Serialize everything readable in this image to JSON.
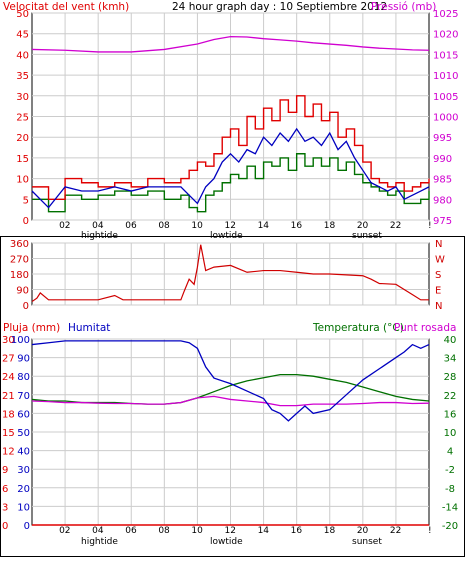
{
  "colors": {
    "wind": "#e00000",
    "gust": "#e00000",
    "avg": "#007000",
    "pressure": "#d000d0",
    "dir": "#d00000",
    "humidity": "#0000c0",
    "temp": "#007000",
    "dew": "#d000d0",
    "rain": "#e00000",
    "grid": "#cccccc",
    "axis": "#000000"
  },
  "x_ticks": [
    "02",
    "04",
    "06",
    "08",
    "10",
    "12",
    "14",
    "16",
    "18",
    "20",
    "22",
    "!"
  ],
  "x_markers": {
    "hightide": "hightide",
    "lowtide": "lowtide",
    "sunset": "sunset"
  },
  "chart_data": [
    {
      "type": "line",
      "title_left": "Velocitat del vent (kmh)",
      "title_center": "24 hour graph day : 10 Septiembre 2012",
      "title_right": "Pressió (mb)",
      "y_left": {
        "ticks": [
          "0",
          "5",
          "10",
          "15",
          "20",
          "25",
          "30",
          "35",
          "40",
          "45",
          "50"
        ],
        "lim": [
          0,
          50
        ]
      },
      "y_right": {
        "ticks": [
          "975",
          "980",
          "985",
          "990",
          "995",
          "1000",
          "1005",
          "1010",
          "1015",
          "1020",
          "1025"
        ],
        "lim": [
          975,
          1025
        ]
      },
      "series": [
        {
          "name": "gust",
          "hours": [
            0,
            1,
            2,
            3,
            4,
            5,
            6,
            7,
            8,
            9,
            9.5,
            10,
            10.5,
            11,
            11.5,
            12,
            12.5,
            13,
            13.5,
            14,
            14.5,
            15,
            15.5,
            16,
            16.5,
            17,
            17.5,
            18,
            18.5,
            19,
            19.5,
            20,
            20.5,
            21,
            21.5,
            22,
            22.5,
            23,
            23.5,
            24
          ],
          "values": [
            8,
            5,
            10,
            9,
            8,
            9,
            8,
            10,
            9,
            10,
            12,
            14,
            13,
            16,
            20,
            22,
            18,
            25,
            22,
            27,
            24,
            29,
            26,
            30,
            25,
            28,
            24,
            26,
            20,
            22,
            18,
            14,
            10,
            9,
            8,
            9,
            7,
            8,
            9,
            10
          ]
        },
        {
          "name": "speed",
          "hours": [
            0,
            1,
            2,
            3,
            4,
            5,
            6,
            7,
            8,
            9,
            9.5,
            10,
            10.5,
            11,
            11.5,
            12,
            12.5,
            13,
            13.5,
            14,
            14.5,
            15,
            15.5,
            16,
            16.5,
            17,
            17.5,
            18,
            18.5,
            19,
            19.5,
            20,
            20.5,
            21,
            21.5,
            22,
            22.5,
            23,
            23.5,
            24
          ],
          "values": [
            7,
            3,
            8,
            7,
            7,
            8,
            7,
            8,
            8,
            8,
            6,
            4,
            8,
            10,
            14,
            16,
            14,
            17,
            16,
            20,
            18,
            21,
            19,
            22,
            19,
            20,
            18,
            21,
            17,
            19,
            15,
            12,
            9,
            8,
            7,
            8,
            5,
            6,
            7,
            8
          ]
        },
        {
          "name": "average",
          "hours": [
            0,
            1,
            2,
            3,
            4,
            5,
            6,
            7,
            8,
            9,
            9.5,
            10,
            10.5,
            11,
            11.5,
            12,
            12.5,
            13,
            13.5,
            14,
            14.5,
            15,
            15.5,
            16,
            16.5,
            17,
            17.5,
            18,
            18.5,
            19,
            19.5,
            20,
            20.5,
            21,
            21.5,
            22,
            22.5,
            23,
            23.5,
            24
          ],
          "values": [
            5,
            2,
            6,
            5,
            6,
            7,
            6,
            7,
            5,
            6,
            3,
            2,
            6,
            7,
            9,
            11,
            10,
            13,
            10,
            14,
            13,
            15,
            12,
            16,
            13,
            15,
            13,
            15,
            12,
            14,
            11,
            9,
            8,
            7,
            6,
            7,
            4,
            4,
            5,
            7
          ]
        },
        {
          "name": "pressure",
          "hours": [
            0,
            2,
            4,
            6,
            8,
            10,
            11,
            12,
            13,
            14,
            15,
            16,
            17,
            18,
            19,
            20,
            21,
            22,
            23,
            24
          ],
          "values": [
            1016.2,
            1016,
            1015.6,
            1015.6,
            1016.2,
            1017.5,
            1018.6,
            1019.3,
            1019.2,
            1018.8,
            1018.5,
            1018.2,
            1017.8,
            1017.5,
            1017.2,
            1016.8,
            1016.5,
            1016.3,
            1016.1,
            1016
          ]
        }
      ]
    },
    {
      "type": "scatter",
      "y_left": {
        "ticks": [
          "0",
          "90",
          "180",
          "270",
          "360"
        ],
        "lim": [
          0,
          360
        ]
      },
      "y_right_labels": [
        "N",
        "W",
        "S",
        "E",
        "N"
      ],
      "series": [
        {
          "name": "direction",
          "hours": [
            0,
            0.3,
            0.5,
            1,
            2,
            3,
            4,
            5,
            5.5,
            6,
            7,
            8,
            9,
            9.2,
            9.5,
            9.8,
            10,
            10.2,
            10.5,
            11,
            12,
            13,
            14,
            15,
            16,
            17,
            18,
            19,
            20,
            20.5,
            21,
            22,
            22.5,
            23,
            23.5,
            24
          ],
          "values": [
            20,
            40,
            70,
            30,
            30,
            30,
            30,
            55,
            30,
            30,
            30,
            30,
            30,
            80,
            150,
            120,
            220,
            350,
            200,
            220,
            230,
            190,
            200,
            200,
            190,
            180,
            180,
            175,
            170,
            150,
            125,
            120,
            90,
            60,
            30,
            30
          ]
        }
      ]
    },
    {
      "type": "line",
      "title_left": "Pluja (mm)",
      "title_left2": "Humitat",
      "title_right": "Temperatura (°C)",
      "title_right2": "Punt rosada",
      "y_rain": {
        "ticks": [
          "0",
          "3",
          "6",
          "9",
          "12",
          "15",
          "18",
          "21",
          "24",
          "27",
          "30"
        ],
        "lim": [
          0,
          30
        ]
      },
      "y_hum": {
        "ticks": [
          "0",
          "10",
          "20",
          "30",
          "40",
          "50",
          "60",
          "70",
          "80",
          "90",
          "100"
        ],
        "lim": [
          0,
          100
        ]
      },
      "y_temp": {
        "ticks": [
          "-20",
          "-14",
          "-8",
          "-2",
          "4",
          "10",
          "16",
          "22",
          "28",
          "34",
          "40"
        ],
        "lim": [
          -20,
          40
        ]
      },
      "series": [
        {
          "name": "humidity",
          "hours": [
            0,
            1,
            2,
            3,
            4,
            5,
            6,
            7,
            8,
            9,
            9.5,
            10,
            10.5,
            11,
            12,
            13,
            14,
            14.5,
            15,
            15.5,
            16,
            16.5,
            17,
            18,
            19,
            20,
            21,
            22,
            22.5,
            23,
            23.5,
            24
          ],
          "values": [
            97,
            98,
            99,
            99,
            99,
            99,
            99,
            99,
            99,
            99,
            98,
            95,
            85,
            79,
            76,
            72,
            68,
            62,
            60,
            56,
            60,
            64,
            60,
            62,
            70,
            78,
            84,
            90,
            93,
            97,
            95,
            97
          ]
        },
        {
          "name": "temperature",
          "hours": [
            0,
            1,
            2,
            3,
            4,
            5,
            6,
            7,
            8,
            9,
            10,
            11,
            12,
            13,
            14,
            15,
            16,
            17,
            18,
            19,
            20,
            21,
            22,
            23,
            24
          ],
          "values": [
            20.5,
            20,
            20,
            19.5,
            19.5,
            19.5,
            19.2,
            19,
            19,
            19.5,
            21,
            23,
            25,
            26.5,
            27.5,
            28.5,
            28.5,
            28,
            27,
            26,
            24.5,
            23,
            21.5,
            20.5,
            20
          ]
        },
        {
          "name": "dewpoint",
          "hours": [
            0,
            1,
            2,
            3,
            4,
            5,
            6,
            7,
            8,
            9,
            10,
            11,
            12,
            13,
            14,
            15,
            16,
            17,
            18,
            19,
            20,
            21,
            22,
            23,
            24
          ],
          "values": [
            20,
            19.8,
            19.5,
            19.5,
            19.3,
            19.2,
            19.2,
            19,
            19,
            19.5,
            21,
            21.5,
            20.5,
            20,
            19.5,
            18.5,
            18.5,
            19,
            19,
            19,
            19.2,
            19.5,
            19.5,
            19.2,
            19.3
          ]
        },
        {
          "name": "rain",
          "hours": [
            0,
            24
          ],
          "values": [
            0,
            0
          ]
        }
      ]
    }
  ]
}
